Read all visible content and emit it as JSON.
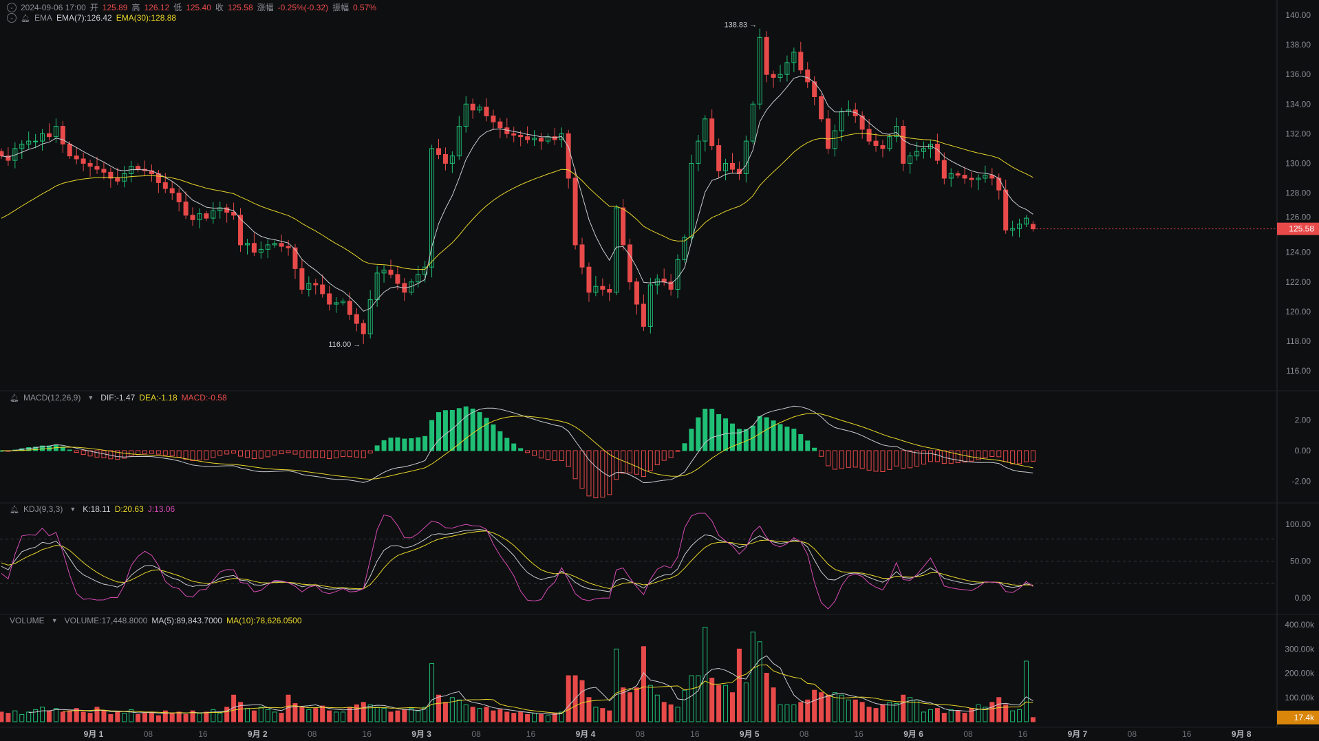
{
  "header": {
    "datetime": "2024-09-06 17:00",
    "open_label": "开",
    "open": "125.89",
    "high_label": "高",
    "high": "126.12",
    "low_label": "低",
    "low": "125.40",
    "close_label": "收",
    "close": "125.58",
    "change_label": "涨幅",
    "change": "-0.25%(-0.32)",
    "amplitude_label": "振幅",
    "amplitude": "0.57%"
  },
  "ema_legend": {
    "name": "EMA",
    "ema7": "EMA(7):126.42",
    "ema30": "EMA(30):128.88"
  },
  "macd_legend": {
    "name": "MACD(12,26,9)",
    "dif": "DIF:-1.47",
    "dea": "DEA:-1.18",
    "macd": "MACD:-0.58"
  },
  "kdj_legend": {
    "name": "KDJ(9,3,3)",
    "k": "K:18.11",
    "d": "D:20.63",
    "j": "J:13.06"
  },
  "volume_legend": {
    "name": "VOLUME",
    "volume": "VOLUME:17,448.8000",
    "ma5": "MA(5):89,843.7000",
    "ma10": "MA(10):78,626.0500"
  },
  "colors": {
    "up": "#1fbf75",
    "down": "#e84a4a",
    "ema7": "#c9ccd2",
    "ema30": "#e8d62a",
    "j": "#d84bb6",
    "volume_tag": "#d9860b",
    "background": "#0e0f11"
  },
  "chart_data": [
    {
      "type": "candlestick",
      "interval": "1h",
      "first_candle": "2024-08-31 10:00",
      "last_candle": {
        "open": 125.89,
        "high": 126.12,
        "low": 125.4,
        "close": 125.58
      },
      "closes": [
        130.5,
        130.2,
        131.0,
        131.3,
        131.5,
        131.5,
        132.0,
        131.8,
        132.5,
        131.3,
        130.5,
        130.3,
        130.0,
        129.8,
        129.6,
        129.4,
        129.0,
        128.8,
        129.3,
        129.8,
        129.6,
        129.5,
        129.3,
        128.7,
        128.3,
        128.0,
        127.4,
        126.5,
        126.2,
        126.6,
        126.3,
        126.8,
        127.0,
        126.7,
        126.5,
        124.5,
        124.6,
        124.0,
        124.2,
        124.5,
        124.6,
        124.4,
        124.3,
        122.9,
        121.5,
        121.9,
        121.8,
        121.2,
        120.5,
        120.6,
        120.7,
        119.8,
        119.2,
        118.5,
        120.8,
        122.6,
        122.8,
        122.5,
        121.9,
        121.3,
        122.0,
        122.5,
        123.0,
        131.0,
        130.6,
        130.0,
        130.5,
        132.5,
        134.0,
        133.6,
        133.8,
        133.2,
        132.8,
        132.4,
        132.0,
        131.9,
        131.8,
        131.6,
        131.7,
        131.5,
        131.8,
        131.6,
        132.0,
        129.0,
        124.5,
        123.0,
        121.3,
        121.7,
        121.5,
        121.3,
        127.0,
        124.5,
        122.0,
        120.5,
        119.0,
        121.8,
        122.2,
        122.0,
        121.5,
        123.5,
        125.0,
        130.0,
        131.5,
        133.0,
        131.2,
        129.5,
        130.0,
        129.6,
        129.3,
        131.5,
        134.0,
        138.5,
        136.0,
        135.8,
        136.0,
        136.8,
        137.5,
        136.3,
        135.5,
        134.5,
        133.0,
        131.0,
        132.2,
        133.5,
        133.6,
        133.2,
        132.3,
        131.5,
        131.2,
        131.0,
        131.8,
        132.5,
        130.0,
        130.5,
        130.8,
        131.0,
        131.3,
        130.2,
        129.0,
        129.3,
        129.2,
        129.0,
        128.9,
        129.0,
        129.2,
        129.0,
        128.2,
        125.5,
        125.6,
        125.9,
        126.3,
        125.58
      ],
      "volumes_k": [
        40,
        35,
        45,
        30,
        40,
        50,
        60,
        45,
        55,
        40,
        45,
        55,
        40,
        35,
        60,
        45,
        30,
        40,
        35,
        50,
        30,
        35,
        40,
        25,
        45,
        35,
        40,
        30,
        45,
        35,
        40,
        50,
        35,
        60,
        110,
        80,
        55,
        45,
        60,
        50,
        40,
        35,
        110,
        75,
        60,
        50,
        55,
        65,
        45,
        40,
        40,
        60,
        70,
        80,
        70,
        60,
        55,
        40,
        45,
        50,
        55,
        45,
        60,
        240,
        110,
        80,
        100,
        90,
        70,
        60,
        55,
        60,
        45,
        50,
        40,
        35,
        40,
        30,
        35,
        30,
        25,
        35,
        40,
        190,
        190,
        170,
        100,
        60,
        55,
        45,
        300,
        140,
        120,
        140,
        310,
        150,
        110,
        80,
        70,
        60,
        130,
        190,
        190,
        390,
        180,
        150,
        150,
        120,
        300,
        160,
        370,
        330,
        200,
        140,
        70,
        70,
        70,
        80,
        90,
        130,
        120,
        110,
        120,
        110,
        90,
        90,
        80,
        60,
        55,
        70,
        80,
        75,
        110,
        100,
        90,
        40,
        50,
        55,
        35,
        50,
        45,
        35,
        55,
        70,
        60,
        80,
        100,
        70,
        45,
        50,
        250,
        17.4
      ],
      "price_axis": {
        "ticks": [
          "140.00",
          "138.00",
          "136.00",
          "134.00",
          "132.00",
          "130.00",
          "128.00",
          "126.00",
          "124.00",
          "122.00",
          "120.00",
          "118.00",
          "116.00"
        ],
        "range": [
          116,
          140
        ]
      },
      "current_price_tag": "125.58",
      "annotations": [
        {
          "label": "138.83",
          "arrow": "→"
        },
        {
          "label": "116.00",
          "arrow": "→"
        }
      ]
    },
    {
      "type": "macd",
      "axis_ticks": [
        "2.00",
        "0.00",
        "-2.00"
      ]
    },
    {
      "type": "kdj",
      "axis_ticks": [
        "100.00",
        "50.00",
        "0.00"
      ],
      "levels": [
        80,
        50,
        20
      ]
    },
    {
      "type": "bar",
      "name": "volume",
      "axis_ticks": [
        "400.00k",
        "300.00k",
        "200.00k",
        "100.00k"
      ],
      "current_tag": "17.4k"
    }
  ],
  "time_axis": {
    "labels": [
      "9月 1",
      "08",
      "16",
      "9月 2",
      "08",
      "16",
      "9月 3",
      "08",
      "16",
      "9月 4",
      "08",
      "16",
      "9月 5",
      "08",
      "16",
      "9月 6",
      "08",
      "16",
      "9月 7",
      "08",
      "16",
      "9月 8"
    ]
  }
}
